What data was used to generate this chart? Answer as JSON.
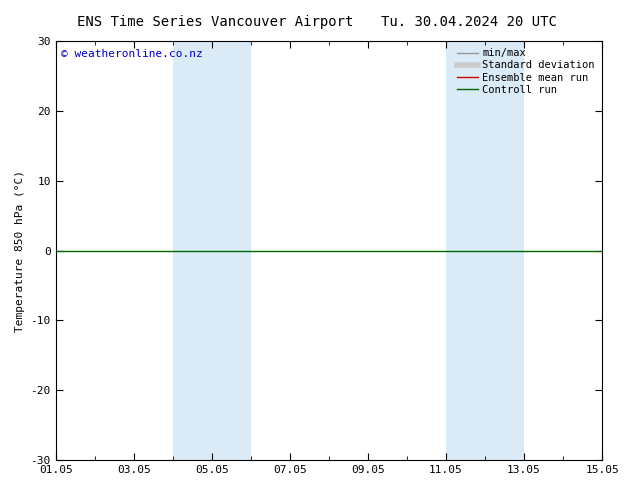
{
  "title_left": "ENS Time Series Vancouver Airport",
  "title_right": "Tu. 30.04.2024 20 UTC",
  "ylabel": "Temperature 850 hPa (°C)",
  "ylim": [
    -30,
    30
  ],
  "yticks": [
    -30,
    -20,
    -10,
    0,
    10,
    20,
    30
  ],
  "xtick_labels": [
    "01.05",
    "03.05",
    "05.05",
    "07.05",
    "09.05",
    "11.05",
    "13.05",
    "15.05"
  ],
  "xtick_positions": [
    0,
    2,
    4,
    6,
    8,
    10,
    12,
    14
  ],
  "x_range": [
    0,
    14
  ],
  "copyright_text": "© weatheronline.co.nz",
  "copyright_color": "#0000cc",
  "blue_bands": [
    {
      "x_start": 3.0,
      "x_end": 4.0
    },
    {
      "x_start": 4.0,
      "x_end": 5.0
    },
    {
      "x_start": 10.0,
      "x_end": 11.0
    },
    {
      "x_start": 11.0,
      "x_end": 12.0
    }
  ],
  "band_color": "#daeaf7",
  "zero_line_color": "#006600",
  "legend_items": [
    {
      "label": "min/max",
      "color": "#999999",
      "lw": 1.0,
      "style": "-"
    },
    {
      "label": "Standard deviation",
      "color": "#cccccc",
      "lw": 4,
      "style": "-"
    },
    {
      "label": "Ensemble mean run",
      "color": "#cc0000",
      "lw": 1.0,
      "style": "-"
    },
    {
      "label": "Controll run",
      "color": "#006600",
      "lw": 1.0,
      "style": "-"
    }
  ],
  "background_color": "#ffffff",
  "plot_bg_color": "#ffffff",
  "title_fontsize": 10,
  "axis_fontsize": 8,
  "tick_fontsize": 8,
  "legend_fontsize": 7.5
}
